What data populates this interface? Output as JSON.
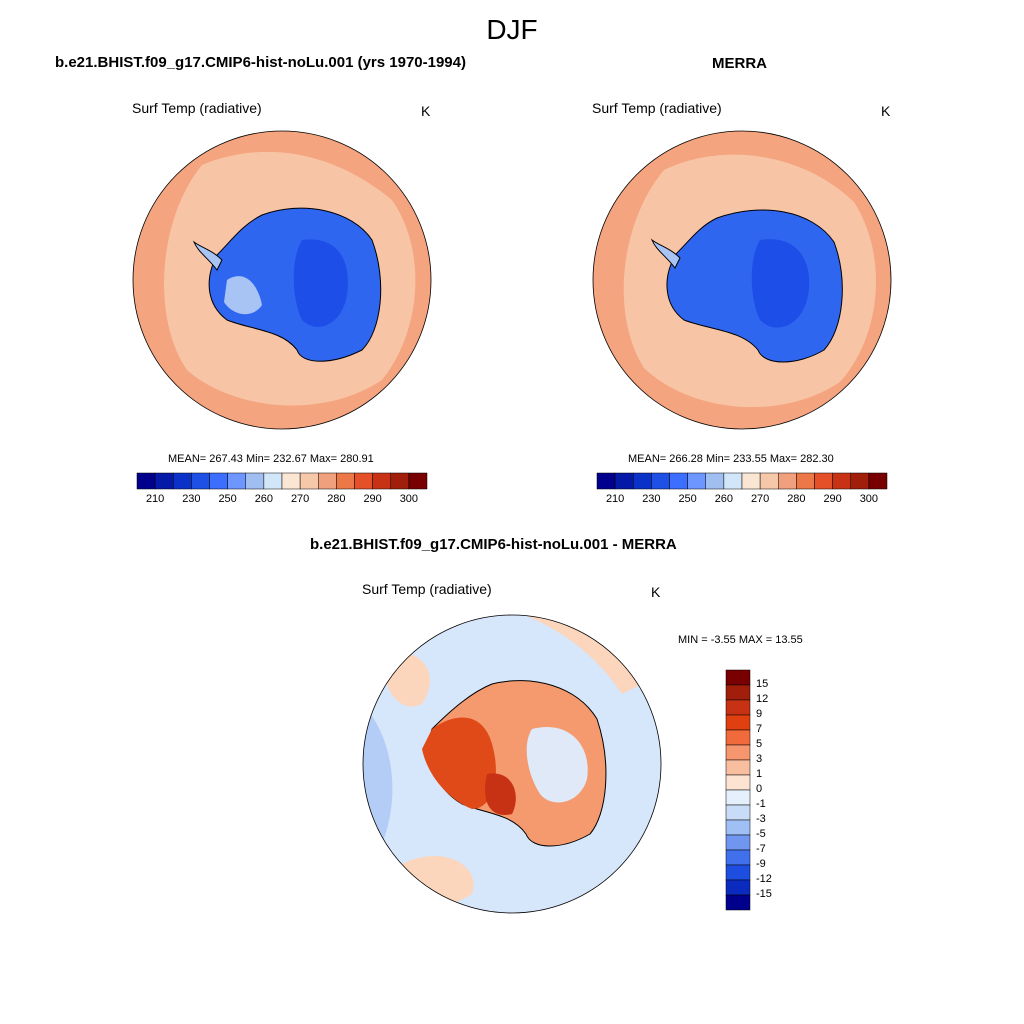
{
  "page": {
    "title": "DJF"
  },
  "panels": [
    {
      "title": "b.e21.BHIST.f09_g17.CMIP6-hist-noLu.001 (yrs 1970-1994)",
      "variable": "Surf Temp (radiative)",
      "units": "K",
      "stats": "MEAN= 267.43  Min= 232.67  Max= 280.91"
    },
    {
      "title": "MERRA",
      "variable": "Surf Temp (radiative)",
      "units": "K",
      "stats": "MEAN= 266.28  Min= 233.55  Max= 282.30"
    },
    {
      "title": "b.e21.BHIST.f09_g17.CMIP6-hist-noLu.001 - MERRA",
      "variable": "Surf Temp (radiative)",
      "units": "K",
      "stats": "MIN =  -3.55 MAX =  13.55"
    }
  ],
  "colorbar_abs": {
    "tick_labels": [
      "210",
      "230",
      "250",
      "260",
      "270",
      "280",
      "290",
      "300"
    ],
    "colors": [
      "#00008c",
      "#0519a8",
      "#0a32c8",
      "#1e50e6",
      "#3c6eff",
      "#6e96ff",
      "#a0bef0",
      "#d2e6fa",
      "#fae6d2",
      "#f5c8aa",
      "#f0a07d",
      "#eb7846",
      "#e65028",
      "#c83214",
      "#a01e0a",
      "#780000"
    ]
  },
  "colorbar_diff": {
    "tick_labels": [
      "15",
      "12",
      "9",
      "7",
      "5",
      "3",
      "1",
      "0",
      "-1",
      "-3",
      "-5",
      "-7",
      "-9",
      "-12",
      "-15"
    ],
    "colors": [
      "#780000",
      "#a01e0a",
      "#c83214",
      "#e04010",
      "#f06a3c",
      "#f5966e",
      "#f8bea0",
      "#fde4d2",
      "#e6f0fc",
      "#c8dcf8",
      "#a0c0f5",
      "#7096f0",
      "#4070ec",
      "#1e4ee0",
      "#0a2ac0",
      "#00008c"
    ]
  },
  "chart_data": {
    "type": "heatmap",
    "projection": "south polar stereographic",
    "maps": [
      {
        "title": "b.e21.BHIST.f09_g17.CMIP6-hist-noLu.001 (yrs 1970-1994)",
        "variable": "Surf Temp (radiative)",
        "units": "K",
        "mean": 267.43,
        "min": 232.67,
        "max": 280.91
      },
      {
        "title": "MERRA",
        "variable": "Surf Temp (radiative)",
        "units": "K",
        "mean": 266.28,
        "min": 233.55,
        "max": 282.3
      },
      {
        "title": "b.e21.BHIST.f09_g17.CMIP6-hist-noLu.001 - MERRA",
        "variable": "Surf Temp (radiative)",
        "units": "K",
        "min": -3.55,
        "max": 13.55
      }
    ],
    "colorbar_abs_ticks": [
      210,
      230,
      250,
      260,
      270,
      280,
      290,
      300
    ],
    "colorbar_diff_ticks": [
      15,
      12,
      9,
      7,
      5,
      3,
      1,
      0,
      -1,
      -3,
      -5,
      -7,
      -9,
      -12,
      -15
    ]
  }
}
